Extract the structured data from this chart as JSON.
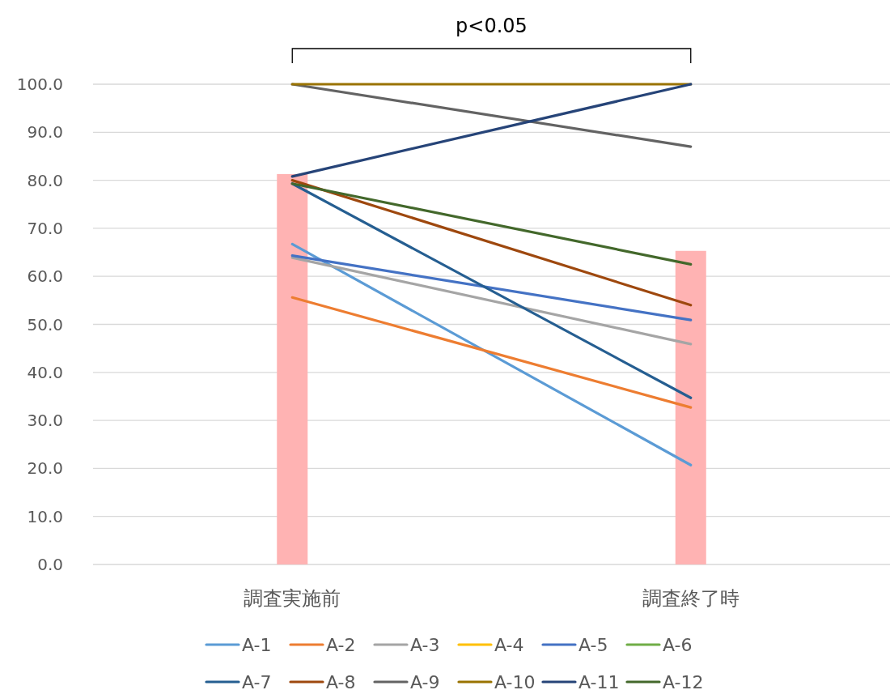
{
  "chart_data": {
    "type": "line",
    "categories": [
      "調査実施前",
      "調査終了時"
    ],
    "ylim": [
      0,
      100
    ],
    "yticks": [
      {
        "value": 0,
        "label": "0.0"
      },
      {
        "value": 10,
        "label": "10.0"
      },
      {
        "value": 20,
        "label": "20.0"
      },
      {
        "value": 30,
        "label": "30.0"
      },
      {
        "value": 40,
        "label": "40.0"
      },
      {
        "value": 50,
        "label": "50.0"
      },
      {
        "value": 60,
        "label": "60.0"
      },
      {
        "value": 70,
        "label": "70.0"
      },
      {
        "value": 80,
        "label": "80.0"
      },
      {
        "value": 90,
        "label": "90.0"
      },
      {
        "value": 100,
        "label": "100.0"
      }
    ],
    "grid": "y",
    "legend": "bottom",
    "annotations": [
      "p<0.05"
    ],
    "series": [
      {
        "type": "bar",
        "color": "#ffb3b3",
        "values": [
          81.3,
          65.3
        ]
      },
      {
        "name": "A-1",
        "color": "#5b9bd5",
        "values": [
          66.7,
          20.7
        ]
      },
      {
        "name": "A-2",
        "color": "#ed7d31",
        "values": [
          55.6,
          32.7
        ]
      },
      {
        "name": "A-3",
        "color": "#a5a5a5",
        "values": [
          63.9,
          45.9
        ]
      },
      {
        "name": "A-4",
        "color": "#ffc000",
        "values": [
          null,
          null
        ]
      },
      {
        "name": "A-5",
        "color": "#4472c4",
        "values": [
          64.3,
          50.9
        ]
      },
      {
        "name": "A-6",
        "color": "#70ad47",
        "values": [
          null,
          null
        ]
      },
      {
        "name": "A-7",
        "color": "#255e91",
        "values": [
          79.3,
          34.7
        ]
      },
      {
        "name": "A-8",
        "color": "#9e480e",
        "values": [
          80.0,
          54.0
        ]
      },
      {
        "name": "A-9",
        "color": "#636363",
        "values": [
          100,
          87.0
        ]
      },
      {
        "name": "A-10",
        "color": "#997300",
        "values": [
          100,
          100
        ]
      },
      {
        "name": "A-11",
        "color": "#264478",
        "values": [
          80.8,
          100
        ]
      },
      {
        "name": "A-12",
        "color": "#43682b",
        "values": [
          79.3,
          62.5
        ]
      }
    ]
  }
}
